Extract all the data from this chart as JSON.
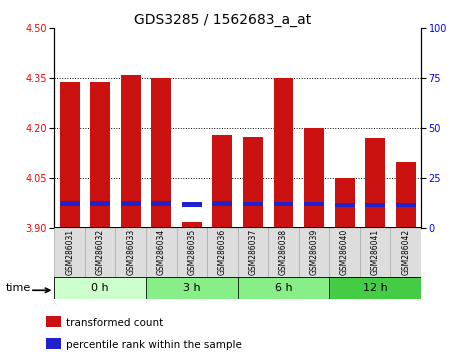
{
  "title": "GDS3285 / 1562683_a_at",
  "samples": [
    "GSM286031",
    "GSM286032",
    "GSM286033",
    "GSM286034",
    "GSM286035",
    "GSM286036",
    "GSM286037",
    "GSM286038",
    "GSM286039",
    "GSM286040",
    "GSM286041",
    "GSM286042"
  ],
  "red_values": [
    4.34,
    4.34,
    4.36,
    4.35,
    3.92,
    4.18,
    4.175,
    4.35,
    4.2,
    4.05,
    4.17,
    4.1
  ],
  "blue_bottoms": [
    3.968,
    3.968,
    3.968,
    3.968,
    3.965,
    3.968,
    3.966,
    3.966,
    3.966,
    3.964,
    3.964,
    3.964
  ],
  "blue_heights": [
    0.013,
    0.013,
    0.013,
    0.013,
    0.013,
    0.013,
    0.013,
    0.013,
    0.013,
    0.013,
    0.013,
    0.013
  ],
  "bar_bottom": 3.9,
  "ylim_left": [
    3.9,
    4.5
  ],
  "ylim_right": [
    0,
    100
  ],
  "yticks_left": [
    3.9,
    4.05,
    4.2,
    4.35,
    4.5
  ],
  "yticks_right": [
    0,
    25,
    50,
    75,
    100
  ],
  "time_colors": [
    "#ccffcc",
    "#88ee88",
    "#88ee88",
    "#44cc44"
  ],
  "time_labels": [
    "0 h",
    "3 h",
    "6 h",
    "12 h"
  ],
  "time_ranges": [
    [
      0,
      3
    ],
    [
      3,
      6
    ],
    [
      6,
      9
    ],
    [
      9,
      12
    ]
  ],
  "red_color": "#cc1111",
  "blue_color": "#2222cc",
  "bar_width": 0.65,
  "legend_red": "transformed count",
  "legend_blue": "percentile rank within the sample",
  "grid_lines": [
    4.05,
    4.2,
    4.35
  ],
  "title_fontsize": 10,
  "tick_fontsize": 7,
  "sample_fontsize": 5.5,
  "time_fontsize": 8,
  "legend_fontsize": 7.5
}
